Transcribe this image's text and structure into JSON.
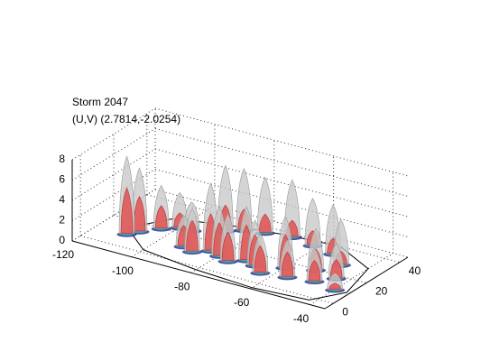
{
  "chart_data": {
    "type": "surface3d",
    "title": "Storm 2047",
    "subtitle": "(U,V) (2.7814,-2.0254)",
    "xlabel": "",
    "ylabel": "",
    "zlabel": "",
    "xlim": [
      -120,
      -35
    ],
    "ylim": [
      -5,
      45
    ],
    "zlim": [
      0,
      8
    ],
    "x_ticks": [
      -120,
      -100,
      -80,
      -60,
      -40
    ],
    "y_ticks": [
      0,
      20,
      40
    ],
    "z_ticks": [
      0,
      2,
      4,
      6,
      8
    ],
    "grid": true,
    "colors": {
      "outer_surface": "#c8c8c8",
      "inner_surface": "#e05858",
      "base_low": "#2a3a90",
      "base_mid": "#40b0b0"
    },
    "outline": [
      [
        -112,
        14
      ],
      [
        -105,
        28
      ],
      [
        -90,
        34
      ],
      [
        -72,
        38
      ],
      [
        -55,
        40
      ],
      [
        -40,
        30
      ],
      [
        -36,
        10
      ],
      [
        -42,
        -2
      ],
      [
        -60,
        -4
      ],
      [
        -80,
        -2
      ],
      [
        -100,
        2
      ]
    ],
    "peaks": [
      {
        "x": -110,
        "y": 10,
        "outer": 7.6,
        "inner": 4.5
      },
      {
        "x": -108,
        "y": 14,
        "outer": 6.2,
        "inner": 3.4
      },
      {
        "x": -104,
        "y": 20,
        "outer": 4.2,
        "inner": 2.2
      },
      {
        "x": -100,
        "y": 24,
        "outer": 3.4,
        "inner": 1.4
      },
      {
        "x": -96,
        "y": 24,
        "outer": 2.8,
        "inner": 0.9
      },
      {
        "x": -88,
        "y": 30,
        "outer": 6.4,
        "inner": 2.5
      },
      {
        "x": -84,
        "y": 34,
        "outer": 6.0,
        "inner": 2.0
      },
      {
        "x": -78,
        "y": 36,
        "outer": 5.4,
        "inner": 1.8
      },
      {
        "x": -70,
        "y": 38,
        "outer": 5.6,
        "inner": 1.6
      },
      {
        "x": -62,
        "y": 36,
        "outer": 4.6,
        "inner": 1.4
      },
      {
        "x": -54,
        "y": 34,
        "outer": 4.8,
        "inner": 1.5
      },
      {
        "x": -48,
        "y": 28,
        "outer": 4.4,
        "inner": 1.3
      },
      {
        "x": -92,
        "y": 12,
        "outer": 3.0,
        "inner": 2.0
      },
      {
        "x": -88,
        "y": 10,
        "outer": 4.2,
        "inner": 3.0
      },
      {
        "x": -84,
        "y": 14,
        "outer": 6.6,
        "inner": 3.6
      },
      {
        "x": -80,
        "y": 12,
        "outer": 4.8,
        "inner": 3.2
      },
      {
        "x": -76,
        "y": 10,
        "outer": 4.6,
        "inner": 2.8
      },
      {
        "x": -72,
        "y": 14,
        "outer": 5.2,
        "inner": 3.4
      },
      {
        "x": -68,
        "y": 12,
        "outer": 4.4,
        "inner": 3.0
      },
      {
        "x": -64,
        "y": 8,
        "outer": 3.8,
        "inner": 2.6
      },
      {
        "x": -60,
        "y": 16,
        "outer": 5.0,
        "inner": 3.2
      },
      {
        "x": -56,
        "y": 10,
        "outer": 3.6,
        "inner": 2.4
      },
      {
        "x": -52,
        "y": 20,
        "outer": 4.0,
        "inner": 2.0
      },
      {
        "x": -48,
        "y": 12,
        "outer": 3.2,
        "inner": 2.0
      },
      {
        "x": -44,
        "y": 18,
        "outer": 3.4,
        "inner": 1.8
      },
      {
        "x": -40,
        "y": 10,
        "outer": 1.6,
        "inner": 0.6
      }
    ]
  }
}
